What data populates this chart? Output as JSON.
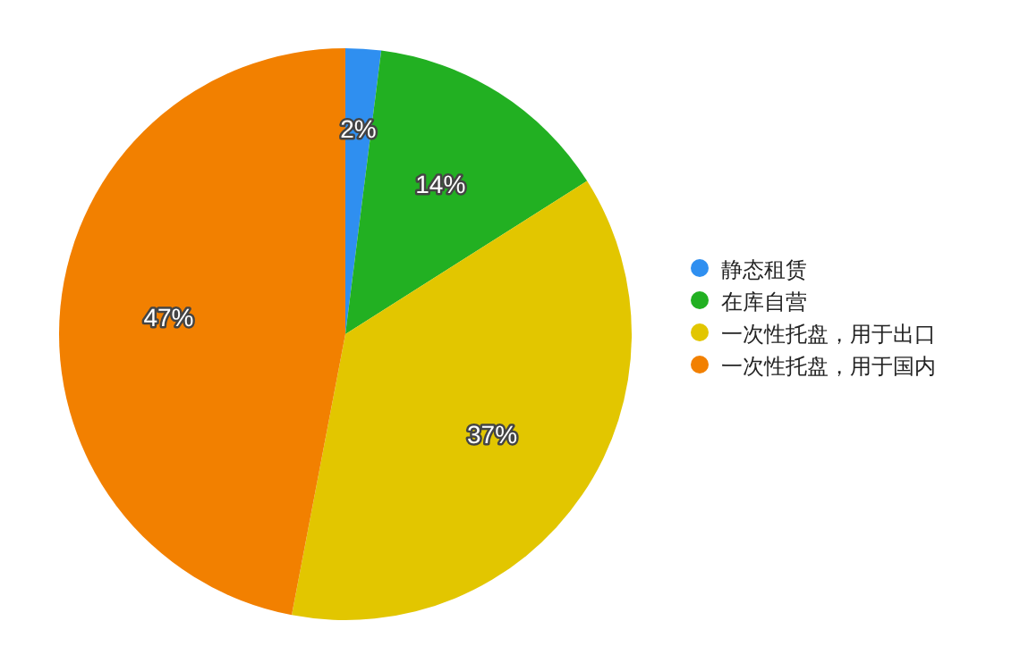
{
  "chart_data": {
    "type": "pie",
    "categories": [
      "静态租赁",
      "在库自营",
      "一次性托盘，用于出口",
      "一次性托盘，用于国内"
    ],
    "values": [
      2,
      14,
      37,
      47
    ],
    "colors": [
      "#2f8ff0",
      "#22b022",
      "#e2c600",
      "#f28000"
    ],
    "value_labels": [
      "2%",
      "14%",
      "37%",
      "47%"
    ],
    "legend": "right"
  }
}
